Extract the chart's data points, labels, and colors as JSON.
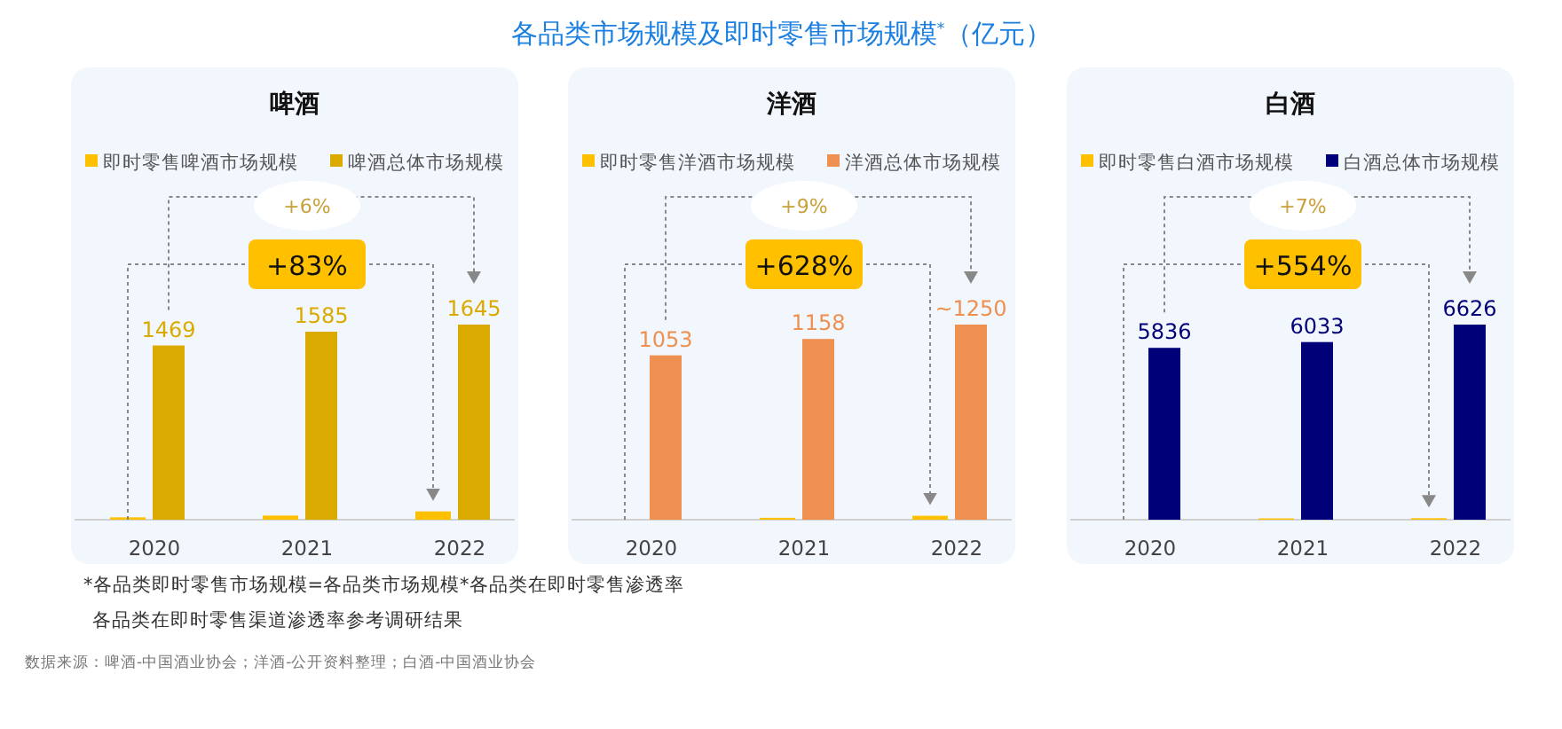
{
  "chart_data": [
    {
      "type": "bar",
      "title": "啤酒",
      "categories": [
        "2020",
        "2021",
        "2022"
      ],
      "legend": "top",
      "annotations": [
        "+6%",
        "+83%"
      ],
      "series": [
        {
          "name": "即时零售啤酒市场规模",
          "color": "#ffc000",
          "values": [
            20,
            35,
            70
          ]
        },
        {
          "name": "啤酒总体市场规模",
          "color": "#dbaa00",
          "values": [
            1469,
            1585,
            1645
          ],
          "value_labels": [
            "1469",
            "1585",
            "1645"
          ]
        }
      ]
    },
    {
      "type": "bar",
      "title": "洋酒",
      "categories": [
        "2020",
        "2021",
        "2022"
      ],
      "legend": "top",
      "annotations": [
        "+9%",
        "+628%"
      ],
      "series": [
        {
          "name": "即时零售洋酒市场规模",
          "color": "#ffc000",
          "values": [
            null,
            12,
            25
          ]
        },
        {
          "name": "洋酒总体市场规模",
          "color": "#ee9050",
          "values": [
            1053,
            1158,
            1250
          ],
          "value_labels": [
            "1053",
            "1158",
            "~1250"
          ]
        }
      ]
    },
    {
      "type": "bar",
      "title": "白酒",
      "categories": [
        "2020",
        "2021",
        "2022"
      ],
      "legend": "top",
      "annotations": [
        "+7%",
        "+554%"
      ],
      "series": [
        {
          "name": "即时零售白酒市场规模",
          "color": "#ffc000",
          "values": [
            null,
            45,
            52
          ]
        },
        {
          "name": "白酒总体市场规模",
          "color": "#000078",
          "values": [
            5836,
            6033,
            6626
          ],
          "value_labels": [
            "5836",
            "6033",
            "6626"
          ]
        }
      ]
    },
    {
      "type": "other",
      "title": "各品类市场规模及即时零售市场规模$^{*}$（亿元）",
      "annotations": [
        "*各品类即时零售市场规模=各品类市场规模*各品类在即时零售渗透率",
        "各品类在即时零售渠道渗透率参考调研结果",
        "数据来源：啤酒-中国酒业协会；洋酒-公开资料整理；白酒-中国酒业协会"
      ]
    }
  ]
}
